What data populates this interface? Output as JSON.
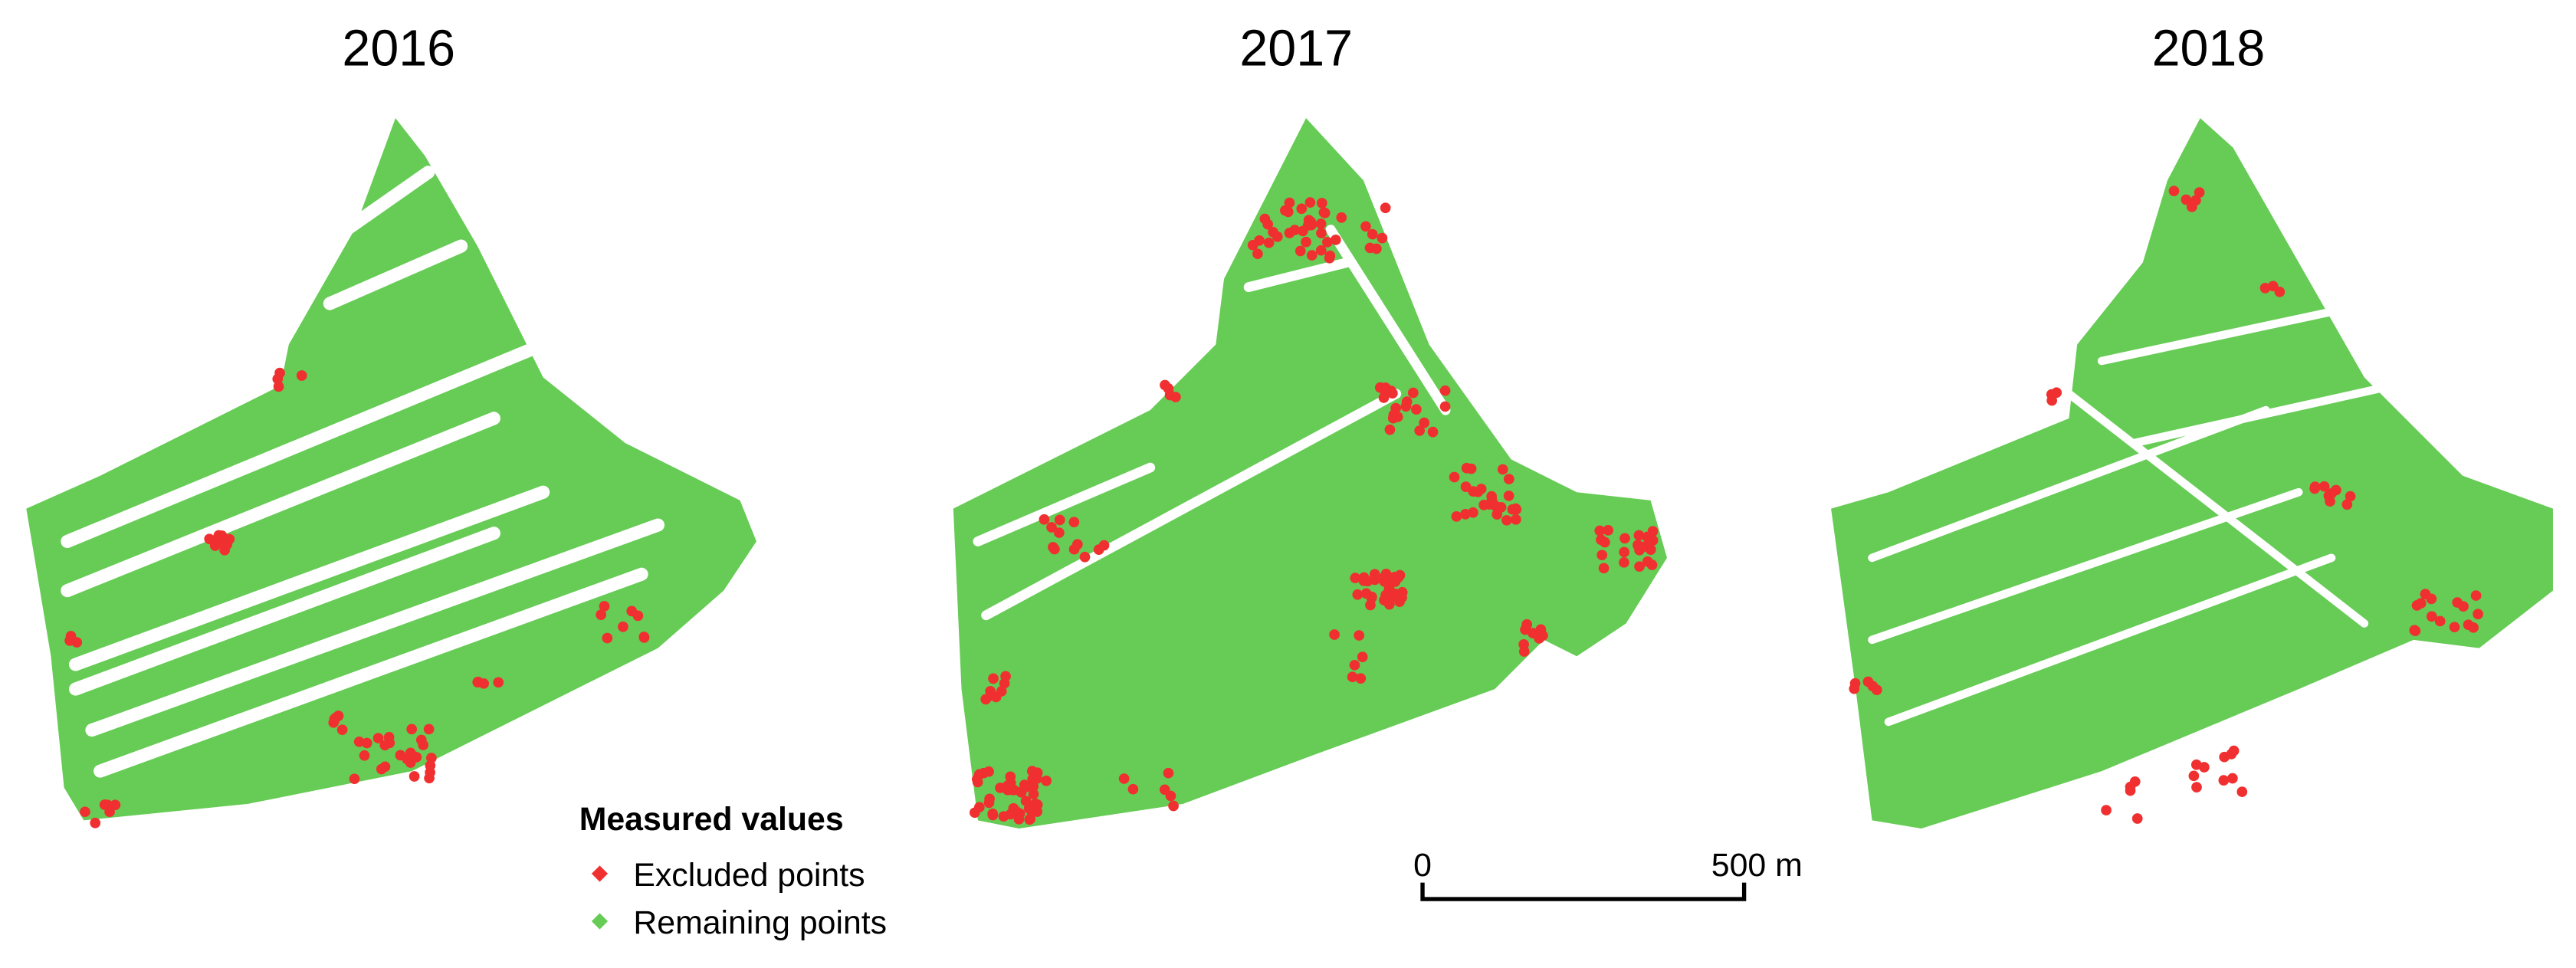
{
  "panels": [
    {
      "title": "2016"
    },
    {
      "title": "2017"
    },
    {
      "title": "2018"
    }
  ],
  "legend": {
    "title": "Measured values",
    "items": [
      {
        "label": "Excluded points",
        "color": "#f03030"
      },
      {
        "label": "Remaining points",
        "color": "#66cc55"
      }
    ]
  },
  "scale_bar": {
    "start_label": "0",
    "end_label": "500 m"
  }
}
